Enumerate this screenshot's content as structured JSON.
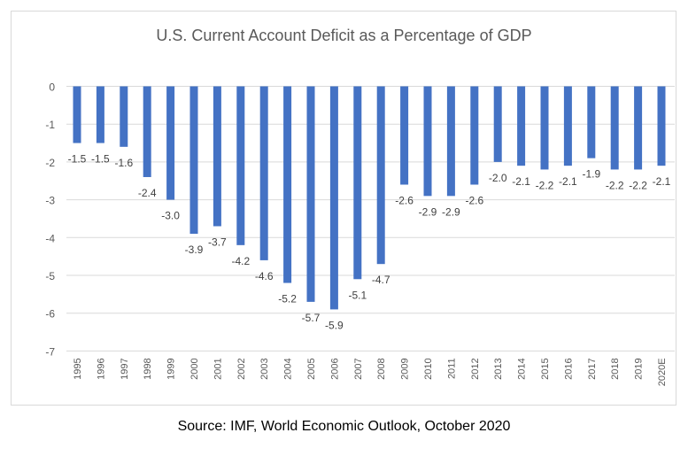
{
  "chart_data": {
    "type": "bar",
    "title": "U.S. Current Account Deficit as a Percentage of GDP",
    "xlabel": "",
    "ylabel": "",
    "ylim": [
      -7,
      0
    ],
    "yticks": [
      0,
      -1,
      -2,
      -3,
      -4,
      -5,
      -6,
      -7
    ],
    "grid": true,
    "categories": [
      "1995",
      "1996",
      "1997",
      "1998",
      "1999",
      "2000",
      "2001",
      "2002",
      "2003",
      "2004",
      "2005",
      "2006",
      "2007",
      "2008",
      "2009",
      "2010",
      "2011",
      "2012",
      "2013",
      "2014",
      "2015",
      "2016",
      "2017",
      "2018",
      "2019",
      "2020E"
    ],
    "values": [
      -1.5,
      -1.5,
      -1.6,
      -2.4,
      -3.0,
      -3.9,
      -3.7,
      -4.2,
      -4.6,
      -5.2,
      -5.7,
      -5.9,
      -5.1,
      -4.7,
      -2.6,
      -2.9,
      -2.9,
      -2.6,
      -2.0,
      -2.1,
      -2.2,
      -2.1,
      -1.9,
      -2.2,
      -2.2,
      -2.1
    ],
    "bar_color": "#4472c4"
  },
  "source": "Source: IMF, World Economic Outlook, October 2020"
}
